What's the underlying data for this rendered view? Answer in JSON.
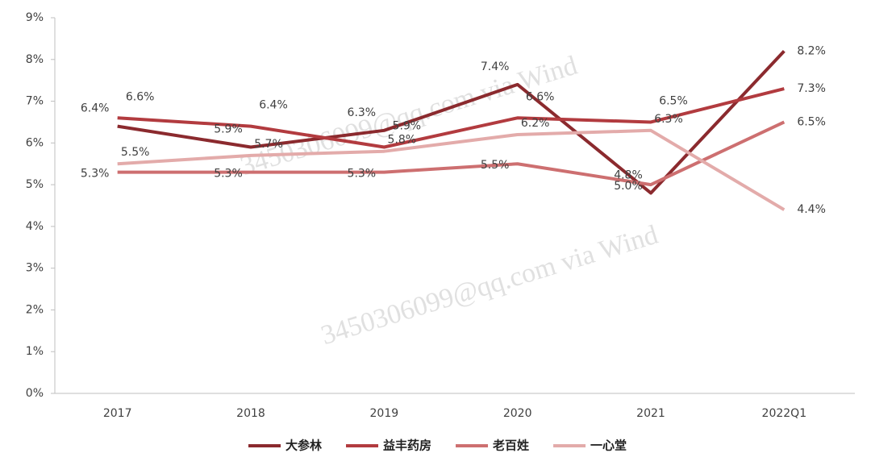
{
  "chart_data": {
    "type": "line",
    "categories": [
      "2017",
      "2018",
      "2019",
      "2020",
      "2021",
      "2022Q1"
    ],
    "ylim": [
      0,
      9
    ],
    "yticks": [
      {
        "value": 0,
        "label": "0%"
      },
      {
        "value": 1,
        "label": "1%"
      },
      {
        "value": 2,
        "label": "2%"
      },
      {
        "value": 3,
        "label": "3%"
      },
      {
        "value": 4,
        "label": "4%"
      },
      {
        "value": 5,
        "label": "5%"
      },
      {
        "value": 6,
        "label": "6%"
      },
      {
        "value": 7,
        "label": "7%"
      },
      {
        "value": 8,
        "label": "8%"
      },
      {
        "value": 9,
        "label": "9%"
      }
    ],
    "grid": false,
    "legend": "bottom",
    "watermark": "3450306099@qq.com via Wind",
    "series": [
      {
        "name": "大参林",
        "color": "#8b2a2e",
        "values": [
          6.4,
          5.9,
          6.3,
          7.4,
          4.8,
          8.2
        ],
        "value_labels": [
          "6.4%",
          "5.9%",
          "6.3%",
          "7.4%",
          "4.8%",
          "8.2%"
        ]
      },
      {
        "name": "益丰药房",
        "color": "#b23b3f",
        "values": [
          6.6,
          6.4,
          5.9,
          6.6,
          6.5,
          7.3
        ],
        "value_labels": [
          "6.6%",
          "6.4%",
          "5.9%",
          "6.6%",
          "6.5%",
          "7.3%"
        ]
      },
      {
        "name": "老百姓",
        "color": "#cd6f70",
        "values": [
          5.3,
          5.3,
          5.3,
          5.5,
          5.0,
          6.5
        ],
        "value_labels": [
          "5.3%",
          "5.3%",
          "5.3%",
          "5.5%",
          "5.0%",
          "6.5%"
        ]
      },
      {
        "name": "一心堂",
        "color": "#e3abaa",
        "values": [
          5.5,
          5.7,
          5.8,
          6.2,
          6.3,
          4.4
        ],
        "value_labels": [
          "5.5%",
          "5.7%",
          "5.8%",
          "6.2%",
          "6.3%",
          "4.4%"
        ]
      }
    ]
  }
}
